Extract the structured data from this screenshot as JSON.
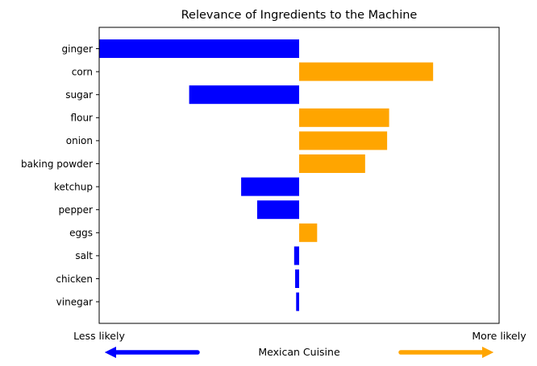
{
  "chart_data": {
    "type": "bar",
    "orientation": "horizontal",
    "title": "Relevance of Ingredients to the Machine",
    "categories": [
      "ginger",
      "corn",
      "sugar",
      "flour",
      "onion",
      "baking powder",
      "ketchup",
      "pepper",
      "eggs",
      "salt",
      "chicken",
      "vinegar"
    ],
    "values": [
      -1.0,
      0.67,
      -0.55,
      0.45,
      0.44,
      0.33,
      -0.29,
      -0.21,
      0.09,
      -0.025,
      -0.02,
      -0.015
    ],
    "xlim": [
      -1.0,
      1.0
    ],
    "grid": false,
    "colors": {
      "negative": "#0000ff",
      "positive": "#ffa500"
    },
    "x_axis_annotations": {
      "left_label": "Less likely",
      "right_label": "More likely",
      "center_label": "Mexican Cuisine",
      "left_arrow_color": "#0000ff",
      "right_arrow_color": "#ffa500"
    }
  }
}
